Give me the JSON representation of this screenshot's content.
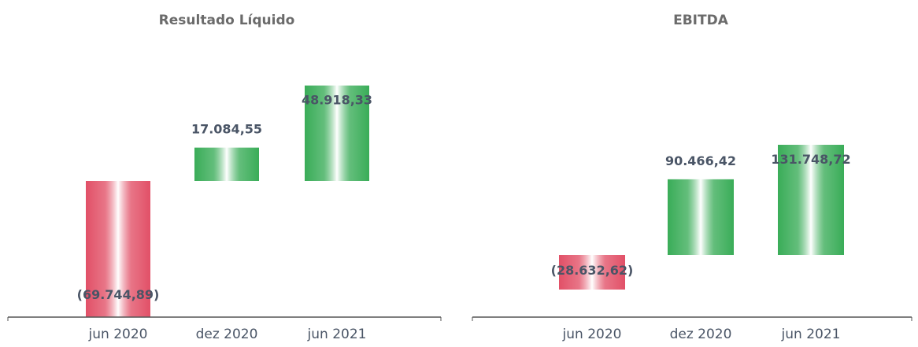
{
  "colors": {
    "positive": "#2fa84f",
    "negative": "#e0475f",
    "text": "#4a5566",
    "axis": "#555555"
  },
  "chart_data": [
    {
      "type": "bar",
      "style": "waterfall",
      "title": "Resultado Líquido",
      "categories": [
        "jun 2020",
        "dez 2020",
        "jun 2021"
      ],
      "values": [
        -69744.89,
        17084.55,
        48918.33
      ],
      "value_labels": [
        "(69.744,89)",
        "17.084,55",
        "48.918,33"
      ],
      "xlabel": "",
      "ylabel": "",
      "grid": false,
      "legend": "none"
    },
    {
      "type": "bar",
      "style": "waterfall",
      "title": "EBITDA",
      "categories": [
        "jun 2020",
        "dez 2020",
        "jun 2021"
      ],
      "values": [
        -28632.62,
        90466.42,
        131748.72
      ],
      "value_labels": [
        "(28.632,62)",
        "90.466,42",
        "131.748,72"
      ],
      "xlabel": "",
      "ylabel": "",
      "grid": false,
      "legend": "none"
    }
  ]
}
